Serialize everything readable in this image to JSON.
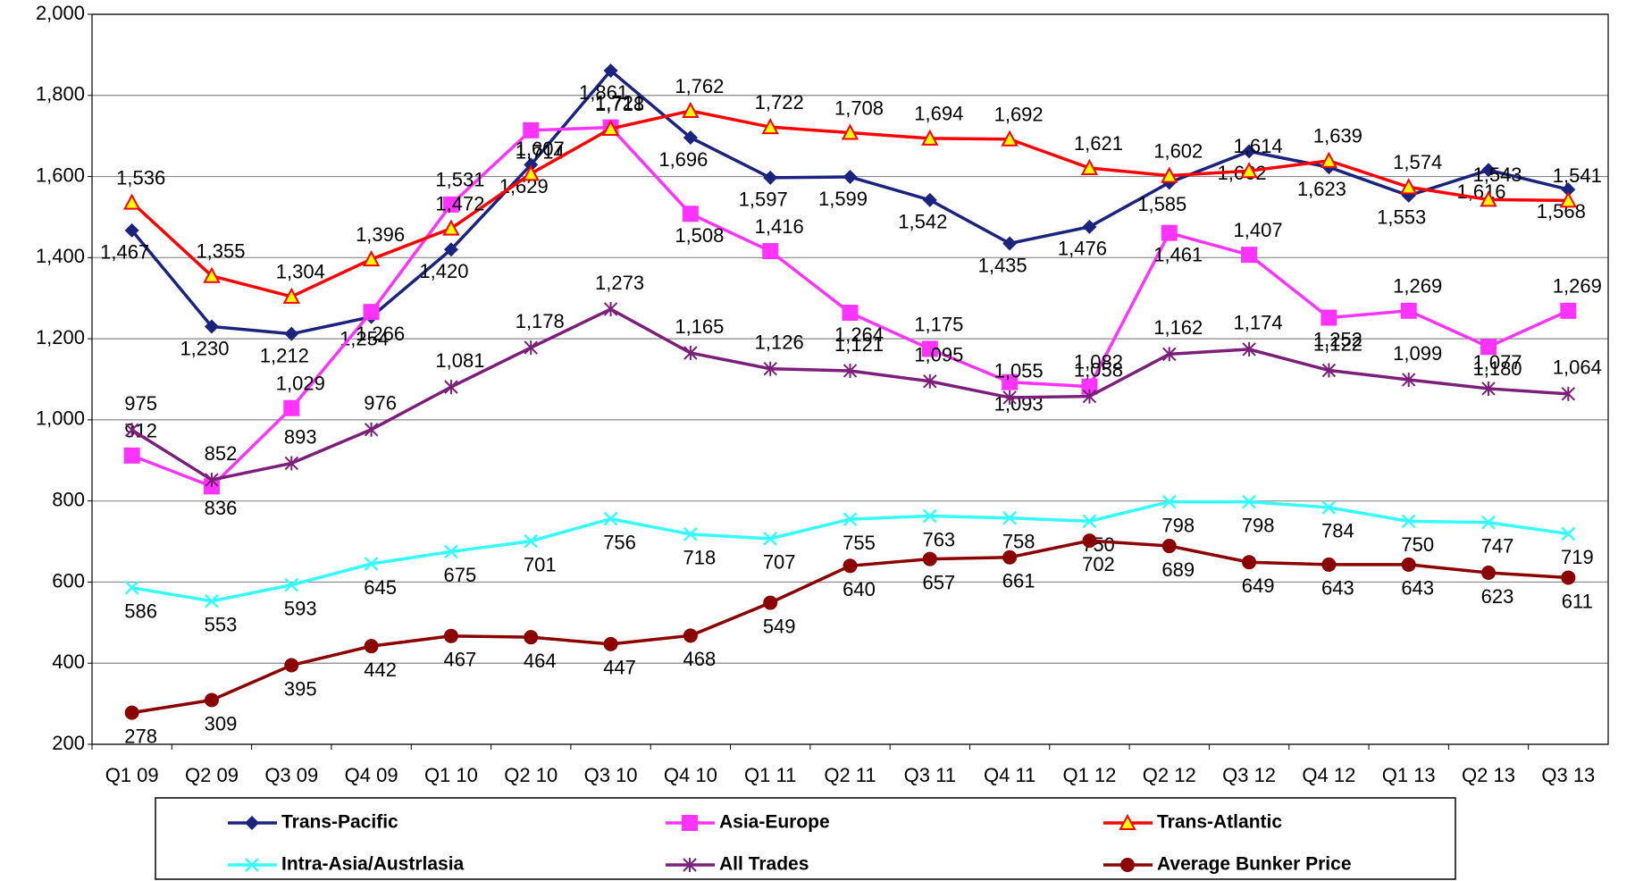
{
  "chart_data": {
    "type": "line",
    "categories": [
      "Q1 09",
      "Q2 09",
      "Q3 09",
      "Q4 09",
      "Q1 10",
      "Q2 10",
      "Q3 10",
      "Q4 10",
      "Q1 11",
      "Q2 11",
      "Q3 11",
      "Q4 11",
      "Q1 12",
      "Q2 12",
      "Q3 12",
      "Q4 12",
      "Q1 13",
      "Q2 13",
      "Q3 13"
    ],
    "ylim": [
      200,
      2000
    ],
    "yticks": [
      200,
      400,
      600,
      800,
      {
        "value": 1000,
        "label": "1,000"
      },
      {
        "value": 1200,
        "label": "1,200"
      },
      {
        "value": 1400,
        "label": "1,400"
      },
      {
        "value": 1600,
        "label": "1,600"
      },
      {
        "value": 1800,
        "label": "1,800"
      },
      {
        "value": 2000,
        "label": "2,000"
      }
    ],
    "grid": true,
    "legend": "bottom",
    "series": [
      {
        "name": "Trans-Pacific",
        "color": "#1a237e",
        "marker": "diamond",
        "values": [
          1467,
          1230,
          1212,
          1254,
          1420,
          1629,
          1861,
          1696,
          1597,
          1599,
          1542,
          1435,
          1476,
          1585,
          1662,
          1623,
          1553,
          1616,
          1568
        ],
        "value_labels": [
          "1,467",
          "1,230",
          "1,212",
          "1,254",
          "1,420",
          "1,629",
          "1,861",
          "1,696",
          "1,597",
          "1,599",
          "1,542",
          "1,435",
          "1,476",
          "1,585",
          "1,662",
          "1,623",
          "1,553",
          "1,616",
          "1,568"
        ]
      },
      {
        "name": "Asia-Europe",
        "color": "#ff33ff",
        "marker": "square",
        "values": [
          912,
          836,
          1029,
          1266,
          1531,
          1714,
          1721,
          1508,
          1416,
          1264,
          1175,
          1093,
          1082,
          1461,
          1407,
          1252,
          1269,
          1180,
          1269
        ],
        "value_labels": [
          "912",
          "836",
          "1,029",
          "1,266",
          "1,531",
          "1,714",
          "1,721",
          "1,508",
          "1,416",
          "1,264",
          "1,175",
          "1,093",
          "1,082",
          "1,461",
          "1,407",
          "1,252",
          "1,269",
          "1,180",
          "1,269"
        ]
      },
      {
        "name": "Trans-Atlantic",
        "color": "#ff0000",
        "marker": "triangle",
        "values": [
          1536,
          1355,
          1304,
          1396,
          1472,
          1607,
          1718,
          1762,
          1722,
          1708,
          1694,
          1692,
          1621,
          1602,
          1614,
          1639,
          1574,
          1543,
          1541
        ],
        "value_labels": [
          "1,536",
          "1,355",
          "1,304",
          "1,396",
          "1,472",
          "1,607",
          "1,718",
          "1,762",
          "1,722",
          "1,708",
          "1,694",
          "1,692",
          "1,621",
          "1,602",
          "1,614",
          "1,639",
          "1,574",
          "1,543",
          "1,541"
        ]
      },
      {
        "name": "Intra-Asia/Austrlasia",
        "color": "#33ffff",
        "marker": "x",
        "values": [
          586,
          553,
          593,
          645,
          675,
          701,
          756,
          718,
          707,
          755,
          763,
          758,
          750,
          798,
          798,
          784,
          750,
          747,
          719
        ],
        "value_labels": [
          "586",
          "553",
          "593",
          "645",
          "675",
          "701",
          "756",
          "718",
          "707",
          "755",
          "763",
          "758",
          "750",
          "798",
          "798",
          "784",
          "750",
          "747",
          "719"
        ]
      },
      {
        "name": "All Trades",
        "color": "#7b1f7b",
        "marker": "star",
        "values": [
          975,
          852,
          893,
          976,
          1081,
          1178,
          1273,
          1165,
          1126,
          1121,
          1095,
          1055,
          1058,
          1162,
          1174,
          1122,
          1099,
          1077,
          1064
        ],
        "value_labels": [
          "975",
          "852",
          "893",
          "976",
          "1,081",
          "1,178",
          "1,273",
          "1,165",
          "1,126",
          "1,121",
          "1,095",
          "1,055",
          "1,058",
          "1,162",
          "1,174",
          "1,122",
          "1,099",
          "1,077",
          "1,064"
        ]
      },
      {
        "name": "Average Bunker Price",
        "color": "#8b0000",
        "marker": "circle",
        "values": [
          278,
          309,
          395,
          442,
          467,
          464,
          447,
          468,
          549,
          640,
          657,
          661,
          702,
          689,
          649,
          643,
          643,
          623,
          611
        ],
        "value_labels": [
          "278",
          "309",
          "395",
          "442",
          "467",
          "464",
          "447",
          "468",
          "549",
          "640",
          "657",
          "661",
          "702",
          "689",
          "649",
          "643",
          "643",
          "623",
          "611"
        ]
      }
    ]
  }
}
